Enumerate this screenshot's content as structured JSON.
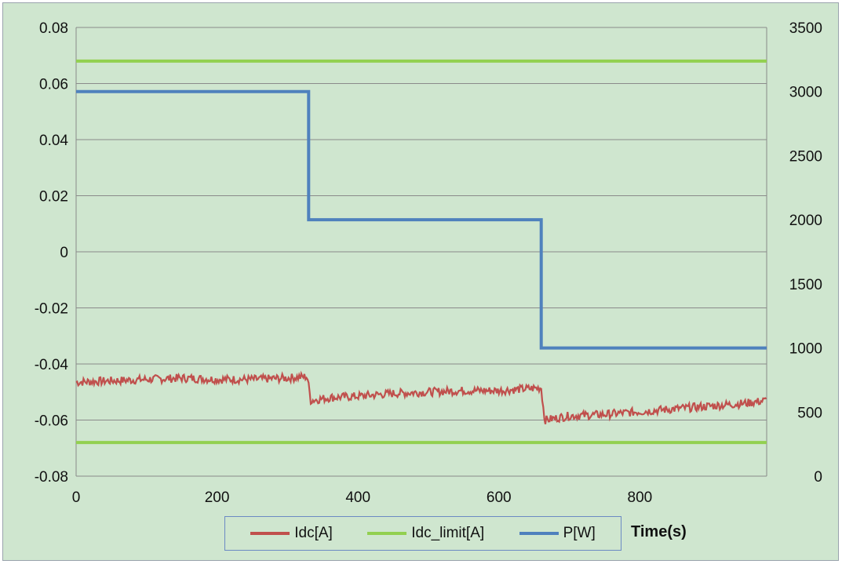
{
  "chart_data": {
    "type": "line",
    "title": "",
    "xlabel": "Time(s)",
    "ylabel": "",
    "y2label": "",
    "xlim": [
      0,
      980
    ],
    "ylim": [
      -0.08,
      0.08
    ],
    "y2lim": [
      0,
      3500
    ],
    "x_ticks": [
      "0",
      "200",
      "400",
      "600",
      "800"
    ],
    "y_ticks": [
      "0.08",
      "0.06",
      "0.04",
      "0.02",
      "0",
      "-0.02",
      "-0.04",
      "-0.06",
      "-0.08"
    ],
    "y2_ticks": [
      "3500",
      "3000",
      "2500",
      "2000",
      "1500",
      "1000",
      "500",
      "0"
    ],
    "grid": true,
    "legend_position": "bottom",
    "series": [
      {
        "name": "Idc[A]",
        "axis": "left",
        "color": "#c0504d",
        "x": [
          0,
          50,
          100,
          150,
          200,
          250,
          300,
          328,
          333,
          360,
          400,
          450,
          500,
          550,
          600,
          630,
          660,
          665,
          700,
          750,
          800,
          850,
          900,
          950,
          980
        ],
        "y": [
          -0.0465,
          -0.046,
          -0.0455,
          -0.045,
          -0.0455,
          -0.0455,
          -0.045,
          -0.0445,
          -0.053,
          -0.052,
          -0.0515,
          -0.0505,
          -0.05,
          -0.0495,
          -0.0495,
          -0.049,
          -0.0485,
          -0.06,
          -0.0585,
          -0.058,
          -0.057,
          -0.056,
          -0.055,
          -0.054,
          -0.053
        ]
      },
      {
        "name": "Idc_limit[A]",
        "axis": "left",
        "color": "#92d050",
        "x": [
          0,
          980
        ],
        "y": [
          0.068,
          0.068
        ]
      },
      {
        "name": "Idc_limit[A]",
        "axis": "left",
        "color": "#92d050",
        "x": [
          0,
          980
        ],
        "y": [
          -0.068,
          -0.068
        ]
      },
      {
        "name": "P[W]",
        "axis": "right",
        "color": "#4f81bd",
        "x": [
          0,
          330,
          330,
          660,
          660,
          980
        ],
        "y": [
          3000,
          3000,
          2000,
          2000,
          1000,
          1000
        ]
      }
    ]
  },
  "legend": [
    {
      "label": "Idc[A]",
      "color": "#c0504d"
    },
    {
      "label": "Idc_limit[A]",
      "color": "#92d050"
    },
    {
      "label": "P[W]",
      "color": "#4f81bd"
    }
  ]
}
